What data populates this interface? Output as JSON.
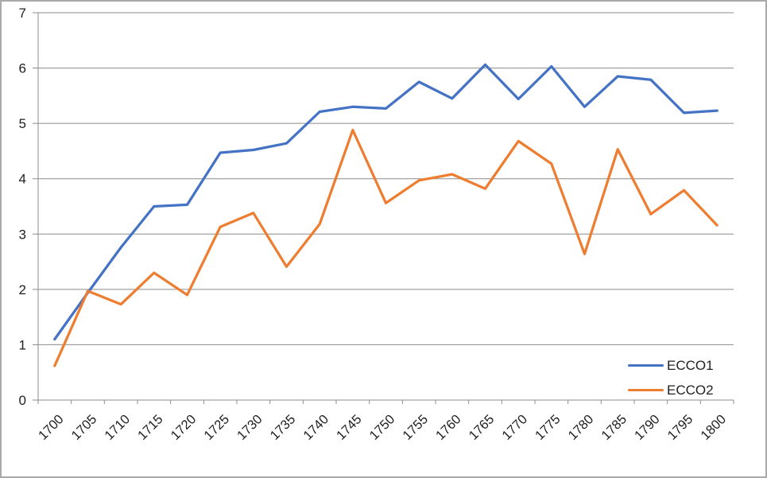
{
  "window": {
    "background_color": "#FFFFFF",
    "frame_border_color": "#A9A9A9"
  },
  "chart_data": {
    "type": "line",
    "title": "",
    "xlabel": "",
    "ylabel": "",
    "categories": [
      "1700",
      "1705",
      "1710",
      "1715",
      "1720",
      "1725",
      "1730",
      "1735",
      "1740",
      "1745",
      "1750",
      "1755",
      "1760",
      "1765",
      "1770",
      "1775",
      "1780",
      "1785",
      "1790",
      "1795",
      "1800"
    ],
    "series": [
      {
        "name": "ECCO1",
        "color": "#4472C4",
        "values": [
          1.1,
          1.94,
          2.76,
          3.5,
          3.53,
          4.47,
          4.52,
          4.64,
          5.21,
          5.3,
          5.27,
          5.75,
          5.45,
          6.06,
          5.44,
          6.03,
          5.3,
          5.85,
          5.79,
          5.19,
          5.23
        ]
      },
      {
        "name": "ECCO2",
        "color": "#ED7D31",
        "values": [
          0.62,
          1.97,
          1.73,
          2.3,
          1.9,
          3.13,
          3.38,
          2.41,
          3.18,
          4.88,
          3.56,
          3.97,
          4.08,
          3.82,
          4.68,
          4.27,
          2.64,
          4.53,
          3.36,
          3.79,
          3.16
        ]
      }
    ],
    "ylim": [
      0,
      7
    ],
    "yticks": [
      0,
      1,
      2,
      3,
      4,
      5,
      6,
      7
    ],
    "grid": "horizontal",
    "gridline_color": "#8C8C8C",
    "axis_color": "#8C8C8C",
    "tick_label_color": "#212121",
    "legend_position": "inside-bottom-right",
    "x_tick_label_rotation_deg": 45
  }
}
